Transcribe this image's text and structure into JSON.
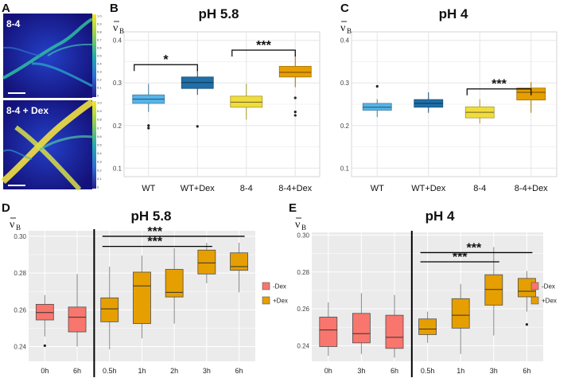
{
  "panel_letters": {
    "A": "A",
    "B": "B",
    "C": "C",
    "D": "D",
    "E": "E"
  },
  "y_symbol": "ν",
  "y_subscript": "B",
  "image_panel": {
    "top_label": "8-4",
    "bottom_label": "8-4 + Dex",
    "colorbar_ticks": [
      "1.0",
      "0.9",
      "0.8",
      "0.7",
      "0.6",
      "0.5",
      "0.4",
      "0.3",
      "0.2",
      "0.1",
      "0"
    ]
  },
  "chart_data": [
    {
      "id": "B",
      "type": "boxplot",
      "title": "pH 5.8",
      "ylabel": "νB",
      "ylim": [
        0.08,
        0.42
      ],
      "yticks": [
        0.1,
        0.2,
        0.3,
        0.4
      ],
      "ytick_labels": [
        "0.1",
        "0.2",
        "0.3",
        "0.4"
      ],
      "categories": [
        "WT",
        "WT+Dex",
        "8-4",
        "8-4+Dex"
      ],
      "boxes": [
        {
          "label": "WT",
          "color": "#56b4e9",
          "q1": 0.252,
          "median": 0.262,
          "q3": 0.272,
          "whisker_low": 0.232,
          "whisker_high": 0.298,
          "outliers": [
            0.2,
            0.194
          ]
        },
        {
          "label": "WT+Dex",
          "color": "#1f6fa8",
          "q1": 0.287,
          "median": 0.301,
          "q3": 0.314,
          "whisker_low": 0.272,
          "whisker_high": 0.332,
          "outliers": [
            0.198
          ]
        },
        {
          "label": "8-4",
          "color": "#f0dc3c",
          "q1": 0.243,
          "median": 0.255,
          "q3": 0.269,
          "whisker_low": 0.214,
          "whisker_high": 0.298,
          "outliers": []
        },
        {
          "label": "8-4+Dex",
          "color": "#e69f00",
          "q1": 0.314,
          "median": 0.325,
          "q3": 0.339,
          "whisker_low": 0.29,
          "whisker_high": 0.368,
          "outliers": [
            0.265,
            0.232,
            0.224
          ]
        }
      ],
      "significance": [
        {
          "from": 0,
          "to": 1,
          "y": 0.343,
          "label": "*"
        },
        {
          "from": 2,
          "to": 3,
          "y": 0.377,
          "label": "***"
        }
      ]
    },
    {
      "id": "C",
      "type": "boxplot",
      "title": "pH 4",
      "ylabel": "νB",
      "ylim": [
        0.08,
        0.42
      ],
      "yticks": [
        0.1,
        0.2,
        0.3,
        0.4
      ],
      "ytick_labels": [
        "0.1",
        "0.2",
        "0.3",
        "0.4"
      ],
      "categories": [
        "WT",
        "WT+Dex",
        "8-4",
        "8-4+Dex"
      ],
      "boxes": [
        {
          "label": "WT",
          "color": "#56b4e9",
          "q1": 0.236,
          "median": 0.243,
          "q3": 0.252,
          "whisker_low": 0.22,
          "whisker_high": 0.262,
          "outliers": [
            0.292
          ]
        },
        {
          "label": "WT+Dex",
          "color": "#1f6fa8",
          "q1": 0.243,
          "median": 0.252,
          "q3": 0.261,
          "whisker_low": 0.23,
          "whisker_high": 0.278,
          "outliers": []
        },
        {
          "label": "8-4",
          "color": "#f0dc3c",
          "q1": 0.218,
          "median": 0.231,
          "q3": 0.244,
          "whisker_low": 0.205,
          "whisker_high": 0.262,
          "outliers": []
        },
        {
          "label": "8-4+Dex",
          "color": "#e69f00",
          "q1": 0.26,
          "median": 0.278,
          "q3": 0.288,
          "whisker_low": 0.23,
          "whisker_high": 0.302,
          "outliers": []
        }
      ],
      "significance": [
        {
          "from": 2,
          "to": 3,
          "y": 0.286,
          "label": "***"
        }
      ]
    },
    {
      "id": "D",
      "type": "boxplot",
      "title": "pH 5.8",
      "ylabel": "νB",
      "ylim": [
        0.232,
        0.303
      ],
      "yticks": [
        0.24,
        0.26,
        0.28,
        0.3
      ],
      "ytick_labels": [
        "0.24",
        "0.26",
        "0.28",
        "0.30"
      ],
      "categories": [
        "0h",
        "6h",
        "0.5h",
        "1h",
        "2h",
        "3h",
        "6h"
      ],
      "divider_after": 1,
      "legend": [
        {
          "label": "-Dex",
          "color": "#f8766d"
        },
        {
          "label": "+Dex",
          "color": "#e69f00"
        }
      ],
      "boxes": [
        {
          "label": "0h",
          "color": "#f8766d",
          "q1": 0.2545,
          "median": 0.2585,
          "q3": 0.263,
          "whisker_low": 0.2455,
          "whisker_high": 0.268,
          "outliers": [
            0.2405
          ]
        },
        {
          "label": "6h",
          "color": "#f8766d",
          "q1": 0.248,
          "median": 0.256,
          "q3": 0.2615,
          "whisker_low": 0.24,
          "whisker_high": 0.2795,
          "outliers": []
        },
        {
          "label": "0.5h",
          "color": "#e69f00",
          "q1": 0.2535,
          "median": 0.2605,
          "q3": 0.2665,
          "whisker_low": 0.2385,
          "whisker_high": 0.2835,
          "outliers": []
        },
        {
          "label": "1h",
          "color": "#e69f00",
          "q1": 0.2525,
          "median": 0.273,
          "q3": 0.2805,
          "whisker_low": 0.2445,
          "whisker_high": 0.2895,
          "outliers": []
        },
        {
          "label": "2h",
          "color": "#e69f00",
          "q1": 0.267,
          "median": 0.2695,
          "q3": 0.282,
          "whisker_low": 0.2525,
          "whisker_high": 0.2935,
          "outliers": []
        },
        {
          "label": "3h",
          "color": "#e69f00",
          "q1": 0.2795,
          "median": 0.2855,
          "q3": 0.2925,
          "whisker_low": 0.2745,
          "whisker_high": 0.2965,
          "outliers": []
        },
        {
          "label": "6h",
          "color": "#e69f00",
          "q1": 0.2815,
          "median": 0.2835,
          "q3": 0.291,
          "whisker_low": 0.2695,
          "whisker_high": 0.2965,
          "outliers": []
        }
      ],
      "significance": [
        {
          "from": 2,
          "to": 6,
          "y": 0.3,
          "label": "***"
        },
        {
          "from": 2,
          "to": 5,
          "y": 0.2945,
          "label": "***"
        }
      ]
    },
    {
      "id": "E",
      "type": "boxplot",
      "title": "pH 4",
      "ylabel": "νB",
      "ylim": [
        0.2315,
        0.3015
      ],
      "yticks": [
        0.24,
        0.26,
        0.28,
        0.3
      ],
      "ytick_labels": [
        "0.24",
        "0.26",
        "0.28",
        "0.30"
      ],
      "categories": [
        "0h",
        "3h",
        "6h",
        "0.5h",
        "1h",
        "3h",
        "6h"
      ],
      "divider_after": 2,
      "legend": [
        {
          "label": "-Dex",
          "color": "#f8766d"
        },
        {
          "label": "+Dex",
          "color": "#e69f00"
        }
      ],
      "boxes": [
        {
          "label": "0h",
          "color": "#f8766d",
          "q1": 0.2395,
          "median": 0.2485,
          "q3": 0.2555,
          "whisker_low": 0.2345,
          "whisker_high": 0.2635,
          "outliers": []
        },
        {
          "label": "3h",
          "color": "#f8766d",
          "q1": 0.2415,
          "median": 0.2465,
          "q3": 0.2575,
          "whisker_low": 0.2355,
          "whisker_high": 0.2685,
          "outliers": []
        },
        {
          "label": "6h",
          "color": "#f8766d",
          "q1": 0.2385,
          "median": 0.2445,
          "q3": 0.2565,
          "whisker_low": 0.2335,
          "whisker_high": 0.2675,
          "outliers": []
        },
        {
          "label": "0.5h",
          "color": "#e69f00",
          "q1": 0.246,
          "median": 0.249,
          "q3": 0.2545,
          "whisker_low": 0.2415,
          "whisker_high": 0.2585,
          "outliers": []
        },
        {
          "label": "1h",
          "color": "#e69f00",
          "q1": 0.2495,
          "median": 0.2565,
          "q3": 0.2655,
          "whisker_low": 0.2355,
          "whisker_high": 0.2735,
          "outliers": []
        },
        {
          "label": "3h",
          "color": "#e69f00",
          "q1": 0.262,
          "median": 0.2705,
          "q3": 0.2785,
          "whisker_low": 0.2455,
          "whisker_high": 0.2935,
          "outliers": []
        },
        {
          "label": "6h",
          "color": "#e69f00",
          "q1": 0.2665,
          "median": 0.2695,
          "q3": 0.2765,
          "whisker_low": 0.2585,
          "whisker_high": 0.2805,
          "outliers": [
            0.2515
          ]
        }
      ],
      "significance": [
        {
          "from": 3,
          "to": 6,
          "y": 0.2905,
          "label": "***"
        },
        {
          "from": 3,
          "to": 5,
          "y": 0.2855,
          "label": "***"
        }
      ]
    }
  ]
}
